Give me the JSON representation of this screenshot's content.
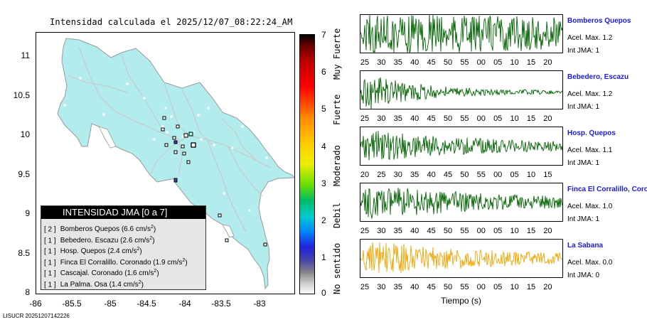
{
  "map": {
    "title": "Intensidad calculada el 2025/12/07_08:22:24_AM",
    "y_ticks": [
      "11",
      "10.5",
      "10",
      "9.5",
      "9",
      "8.5",
      "8"
    ],
    "x_ticks": [
      "-86",
      "-85.5",
      "-85",
      "-84.5",
      "-84",
      "-83.5",
      "-83"
    ],
    "land_color": "#b3ecec",
    "legend": {
      "title": "INTENSIDAD JMA [0 a 7]",
      "rows": [
        {
          "level": "[ 2 ]",
          "text": "Bomberos Quepos (6.6 cm/s",
          "sup": "2",
          "end": ")"
        },
        {
          "level": "[ 1 ]",
          "text": "Bebedero. Escazu (2.6 cm/s",
          "sup": "2",
          "end": ")"
        },
        {
          "level": "[ 1 ]",
          "text": "Hosp. Quepos (2.4 cm/s",
          "sup": "2",
          "end": ")"
        },
        {
          "level": "[ 1 ]",
          "text": "Finca El Corralillo. Coronado (1.9 cm/s",
          "sup": "2",
          "end": ")"
        },
        {
          "level": "[ 1 ]",
          "text": "Cascajal. Coronado (1.6 cm/s",
          "sup": "2",
          "end": ")"
        },
        {
          "level": "[ 1 ]",
          "text": "La Palma. Osa (1.4 cm/s",
          "sup": "2",
          "end": ")"
        }
      ]
    }
  },
  "colorbar": {
    "ticks": [
      "7",
      "6",
      "5",
      "4",
      "3",
      "2",
      "1",
      "0"
    ],
    "labels": [
      "Muy Fuerte",
      "Fuerte",
      "Moderado",
      "Debil",
      "No sentido"
    ]
  },
  "stations": [
    {
      "name": "Bomberos Quepos",
      "acel": "Acel. Max. 1.2",
      "int": "Int JMA: 1",
      "color": "#006400",
      "ticks": [
        "25",
        "30",
        "35",
        "40",
        "45",
        "50",
        "55",
        "00",
        "05",
        "10",
        "15",
        "20"
      ],
      "amp": 1.0,
      "decay": 0.35
    },
    {
      "name": "Bebedero, Escazu",
      "acel": "Acel. Max. 1.2",
      "int": "Int JMA: 1",
      "color": "#006400",
      "ticks": [
        "25",
        "30",
        "35",
        "40",
        "45",
        "50",
        "55",
        "00",
        "05",
        "10",
        "15",
        "20"
      ],
      "amp": 1.0,
      "decay": 4.0
    },
    {
      "name": "Hosp. Quepos",
      "acel": "Acel. Max. 1.1",
      "int": "Int JMA: 1",
      "color": "#006400",
      "ticks": [
        "20",
        "25",
        "30",
        "35",
        "40",
        "45",
        "50",
        "55",
        "00",
        "05",
        "10",
        "15"
      ],
      "amp": 0.75,
      "decay": 1.6
    },
    {
      "name": "Finca El Corralillo, Coronado",
      "acel": "Acel. Max. 1.0",
      "int": "Int JMA: 1",
      "color": "#006400",
      "ticks": [
        "25",
        "30",
        "35",
        "40",
        "45",
        "50",
        "55",
        "00",
        "05",
        "10",
        "15",
        "20"
      ],
      "amp": 0.8,
      "decay": 1.3
    },
    {
      "name": "La Sabana",
      "acel": "Acel. Max. 0.0",
      "int": "Int JMA: 0",
      "color": "#f2a400",
      "ticks": [
        "25",
        "30",
        "35",
        "40",
        "45",
        "50",
        "55",
        "00",
        "05",
        "10",
        "15",
        "20"
      ],
      "amp": 0.85,
      "decay": 1.5
    }
  ],
  "xaxis_label": "Tiempo (s)",
  "footer": "LISUCR 20251207142226"
}
